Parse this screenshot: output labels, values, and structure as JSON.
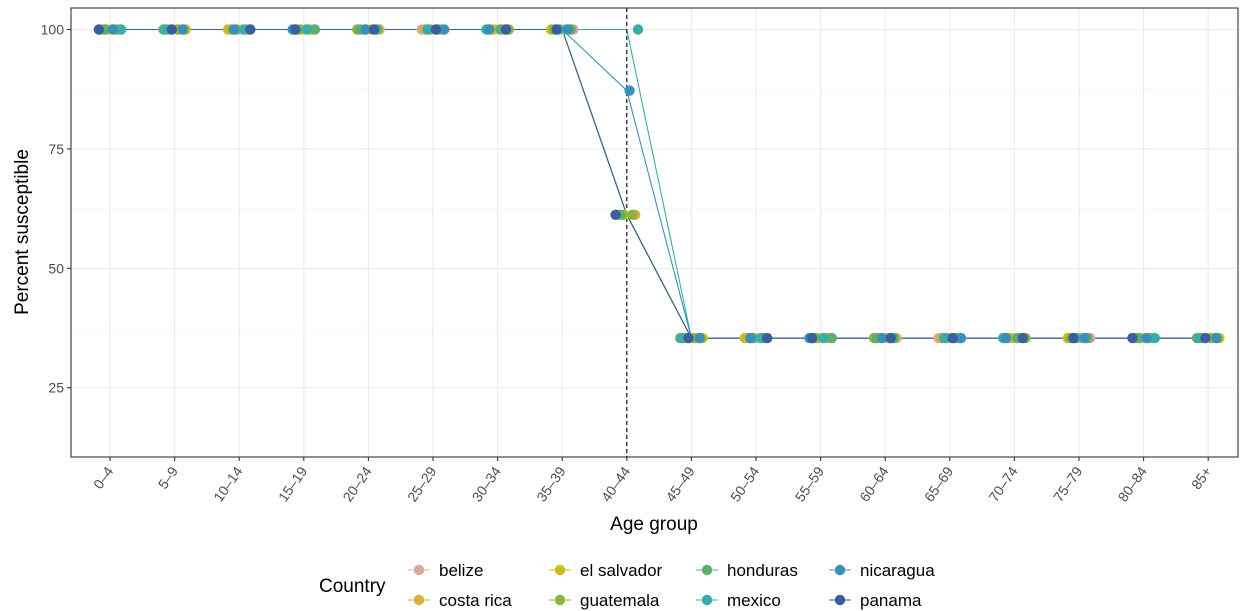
{
  "chart_data": {
    "type": "line",
    "title": "",
    "xlabel": "Age group",
    "ylabel": "Percent susceptible",
    "categories": [
      "0–4",
      "5–9",
      "10–14",
      "15–19",
      "20–24",
      "25–29",
      "30–34",
      "35–39",
      "40–44",
      "45–49",
      "50–54",
      "55–59",
      "60–64",
      "65–69",
      "70–74",
      "75–79",
      "80–84",
      "85+"
    ],
    "ylim": [
      10.5,
      104.5
    ],
    "yticks": [
      "25",
      "50",
      "75",
      "100"
    ],
    "reference_line": {
      "x": "40–44",
      "style": "dashed",
      "color": "#000000"
    },
    "legend": {
      "title": "Country",
      "position": "bottom"
    },
    "grid": true,
    "series": [
      {
        "name": "belize",
        "color": "#D9A89B",
        "values": [
          100,
          100,
          100,
          100,
          100,
          100,
          100,
          100,
          61.2,
          35.4,
          35.4,
          35.4,
          35.4,
          35.4,
          35.4,
          35.4,
          35.4,
          35.4
        ]
      },
      {
        "name": "costa rica",
        "color": "#D8B13C",
        "values": [
          100,
          100,
          100,
          100,
          100,
          100,
          100,
          100,
          61.2,
          35.4,
          35.4,
          35.4,
          35.4,
          35.4,
          35.4,
          35.4,
          35.4,
          35.4
        ]
      },
      {
        "name": "el salvador",
        "color": "#C7BF13",
        "values": [
          100,
          100,
          100,
          100,
          100,
          100,
          100,
          100,
          61.2,
          35.4,
          35.4,
          35.4,
          35.4,
          35.4,
          35.4,
          35.4,
          35.4,
          35.4
        ]
      },
      {
        "name": "guatemala",
        "color": "#8DB43A",
        "values": [
          100,
          100,
          100,
          100,
          100,
          100,
          100,
          100,
          61.2,
          35.4,
          35.4,
          35.4,
          35.4,
          35.4,
          35.4,
          35.4,
          35.4,
          35.4
        ]
      },
      {
        "name": "honduras",
        "color": "#5EAE6E",
        "values": [
          100,
          100,
          100,
          100,
          100,
          100,
          100,
          100,
          61.2,
          35.4,
          35.4,
          35.4,
          35.4,
          35.4,
          35.4,
          35.4,
          35.4,
          35.4
        ]
      },
      {
        "name": "mexico",
        "color": "#38ADAA",
        "values": [
          100,
          100,
          100,
          100,
          100,
          100,
          100,
          100,
          100,
          35.4,
          35.4,
          35.4,
          35.4,
          35.4,
          35.4,
          35.4,
          35.4,
          35.4
        ]
      },
      {
        "name": "nicaragua",
        "color": "#3990B9",
        "values": [
          100,
          100,
          100,
          100,
          100,
          100,
          100,
          100,
          87.2,
          35.4,
          35.4,
          35.4,
          35.4,
          35.4,
          35.4,
          35.4,
          35.4,
          35.4
        ]
      },
      {
        "name": "panama",
        "color": "#3B5E9F",
        "values": [
          100,
          100,
          100,
          100,
          100,
          100,
          100,
          100,
          61.2,
          35.4,
          35.4,
          35.4,
          35.4,
          35.4,
          35.4,
          35.4,
          35.4,
          35.4
        ]
      }
    ]
  }
}
